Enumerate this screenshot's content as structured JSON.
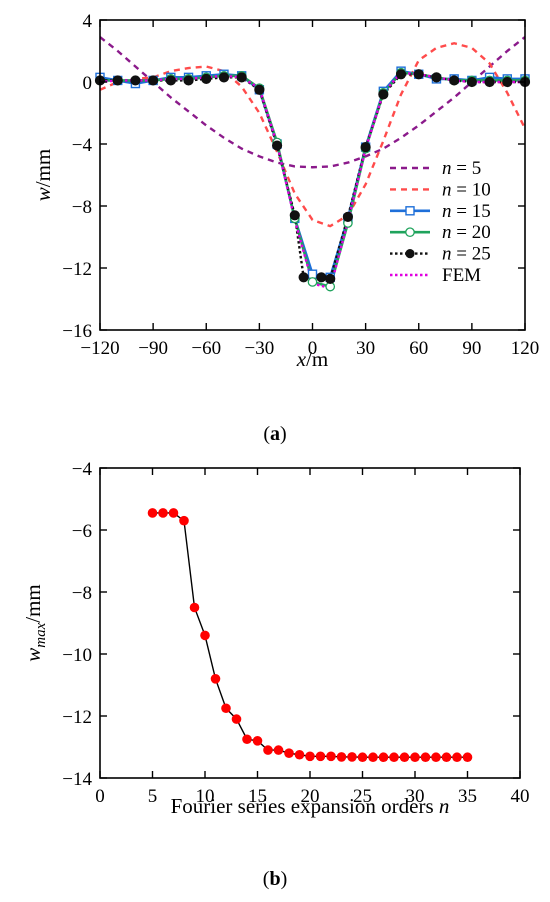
{
  "chart_data": [
    {
      "type": "line",
      "caption_prefix": "(",
      "caption_letter": "a",
      "caption_suffix": ")",
      "xlabel": {
        "var": "x",
        "unit": "/m"
      },
      "ylabel": {
        "var": "w",
        "unit": "/mm"
      },
      "xlim": [
        -120,
        120
      ],
      "ylim": [
        -16,
        4
      ],
      "xticks": [
        -120,
        -90,
        -60,
        -30,
        0,
        30,
        60,
        90,
        120
      ],
      "yticks": [
        4,
        0,
        -4,
        -8,
        -12,
        -16
      ],
      "legend_position": "bottom-right",
      "series": [
        {
          "name": "n = 5",
          "name_var": "n",
          "name_rest": " = 5",
          "color": "#8B1A8B",
          "dash": "dash",
          "marker": "none",
          "x": [
            -120,
            -110,
            -100,
            -90,
            -80,
            -70,
            -60,
            -50,
            -40,
            -30,
            -20,
            -10,
            0,
            10,
            20,
            30,
            40,
            50,
            60,
            70,
            80,
            90,
            100,
            110,
            120
          ],
          "y": [
            2.9,
            2.0,
            1.0,
            0.0,
            -1.0,
            -1.9,
            -2.8,
            -3.6,
            -4.3,
            -4.8,
            -5.2,
            -5.45,
            -5.5,
            -5.45,
            -5.2,
            -4.8,
            -4.3,
            -3.6,
            -2.8,
            -1.9,
            -1.0,
            0.0,
            1.0,
            2.0,
            2.9
          ]
        },
        {
          "name": "n = 10",
          "name_var": "n",
          "name_rest": " = 10",
          "color": "#FF4B4B",
          "dash": "dash",
          "marker": "none",
          "x": [
            -120,
            -110,
            -100,
            -90,
            -80,
            -70,
            -60,
            -50,
            -40,
            -30,
            -20,
            -10,
            0,
            10,
            20,
            30,
            40,
            50,
            60,
            70,
            80,
            90,
            100,
            110,
            120
          ],
          "y": [
            -0.5,
            0.0,
            0.2,
            0.3,
            0.7,
            0.9,
            1.0,
            0.7,
            -0.3,
            -2.0,
            -4.5,
            -7.2,
            -8.9,
            -9.3,
            -8.6,
            -6.6,
            -3.8,
            -0.8,
            1.4,
            2.2,
            2.5,
            2.2,
            1.2,
            -0.7,
            -3.0
          ]
        },
        {
          "name": "n = 15",
          "name_var": "n",
          "name_rest": " = 15",
          "color": "#1E6FD9",
          "dash": "solid",
          "marker": "square",
          "x": [
            -120,
            -110,
            -100,
            -90,
            -80,
            -70,
            -60,
            -50,
            -40,
            -30,
            -20,
            -10,
            0,
            10,
            20,
            30,
            40,
            50,
            60,
            70,
            80,
            90,
            100,
            110,
            120
          ],
          "y": [
            0.3,
            0.1,
            -0.1,
            0.1,
            0.3,
            0.3,
            0.4,
            0.5,
            0.4,
            -0.5,
            -4.0,
            -8.8,
            -12.4,
            -12.6,
            -8.8,
            -4.2,
            -0.6,
            0.7,
            0.5,
            0.2,
            0.2,
            0.1,
            0.3,
            0.2,
            0.2
          ]
        },
        {
          "name": "n = 20",
          "name_var": "n",
          "name_rest": " = 20",
          "color": "#1FA35C",
          "dash": "solid",
          "marker": "circle",
          "x": [
            -120,
            -110,
            -100,
            -90,
            -80,
            -70,
            -60,
            -50,
            -40,
            -30,
            -20,
            -10,
            0,
            10,
            20,
            30,
            40,
            50,
            60,
            70,
            80,
            90,
            100,
            110,
            120
          ],
          "y": [
            0.1,
            0.1,
            0.1,
            0.1,
            0.2,
            0.2,
            0.3,
            0.4,
            0.4,
            -0.4,
            -3.9,
            -8.8,
            -12.9,
            -13.2,
            -9.1,
            -4.3,
            -0.7,
            0.6,
            0.5,
            0.3,
            0.1,
            0.1,
            0.1,
            0.1,
            0.1
          ]
        },
        {
          "name": "n = 25",
          "name_var": "n",
          "name_rest": " = 25",
          "color": "#111111",
          "dash": "dot",
          "marker": "filled-circle",
          "x": [
            -120,
            -110,
            -100,
            -90,
            -80,
            -70,
            -60,
            -50,
            -40,
            -30,
            -20,
            -10,
            -5,
            5,
            10,
            20,
            30,
            40,
            50,
            60,
            70,
            80,
            90,
            100,
            110,
            120
          ],
          "y": [
            0.1,
            0.1,
            0.1,
            0.1,
            0.1,
            0.1,
            0.2,
            0.3,
            0.3,
            -0.5,
            -4.1,
            -8.6,
            -12.6,
            -12.6,
            -12.7,
            -8.7,
            -4.2,
            -0.8,
            0.5,
            0.5,
            0.3,
            0.1,
            0.0,
            0.0,
            0.0,
            0.0
          ]
        },
        {
          "name": "FEM",
          "name_var": "",
          "name_rest": "FEM",
          "color": "#E000E0",
          "dash": "dot",
          "marker": "none",
          "x": [
            -120,
            -110,
            -100,
            -90,
            -80,
            -70,
            -60,
            -50,
            -40,
            -30,
            -20,
            -10,
            0,
            10,
            20,
            30,
            40,
            50,
            60,
            70,
            80,
            90,
            100,
            110,
            120
          ],
          "y": [
            0.0,
            0.1,
            0.1,
            0.1,
            0.2,
            0.2,
            0.3,
            0.4,
            0.3,
            -0.4,
            -4.0,
            -8.9,
            -13.0,
            -13.3,
            -9.0,
            -4.3,
            -0.7,
            0.6,
            0.5,
            0.3,
            0.1,
            0.0,
            0.0,
            0.0,
            0.0
          ]
        }
      ]
    },
    {
      "type": "scatter",
      "caption_prefix": "(",
      "caption_letter": "b",
      "caption_suffix": ")",
      "xlabel": {
        "text": "Fourier series expansion orders ",
        "var": "n"
      },
      "ylabel": {
        "var": "w",
        "sub": "max",
        "unit": "/mm"
      },
      "xlim": [
        0,
        40
      ],
      "ylim": [
        -14,
        -4
      ],
      "xticks": [
        0,
        5,
        10,
        15,
        20,
        25,
        30,
        35,
        40
      ],
      "yticks": [
        -4,
        -6,
        -8,
        -10,
        -12,
        -14
      ],
      "marker_color": "#FF0000",
      "line_color": "#000000",
      "x": [
        5,
        6,
        7,
        8,
        9,
        10,
        11,
        12,
        13,
        14,
        15,
        16,
        17,
        18,
        19,
        20,
        21,
        22,
        23,
        24,
        25,
        26,
        27,
        28,
        29,
        30,
        31,
        32,
        33,
        34,
        35
      ],
      "y": [
        -5.45,
        -5.45,
        -5.45,
        -5.7,
        -8.5,
        -9.4,
        -10.8,
        -11.75,
        -12.1,
        -12.75,
        -12.8,
        -13.1,
        -13.1,
        -13.2,
        -13.25,
        -13.3,
        -13.3,
        -13.3,
        -13.32,
        -13.32,
        -13.33,
        -13.33,
        -13.33,
        -13.33,
        -13.33,
        -13.33,
        -13.33,
        -13.33,
        -13.33,
        -13.33,
        -13.33
      ]
    }
  ]
}
